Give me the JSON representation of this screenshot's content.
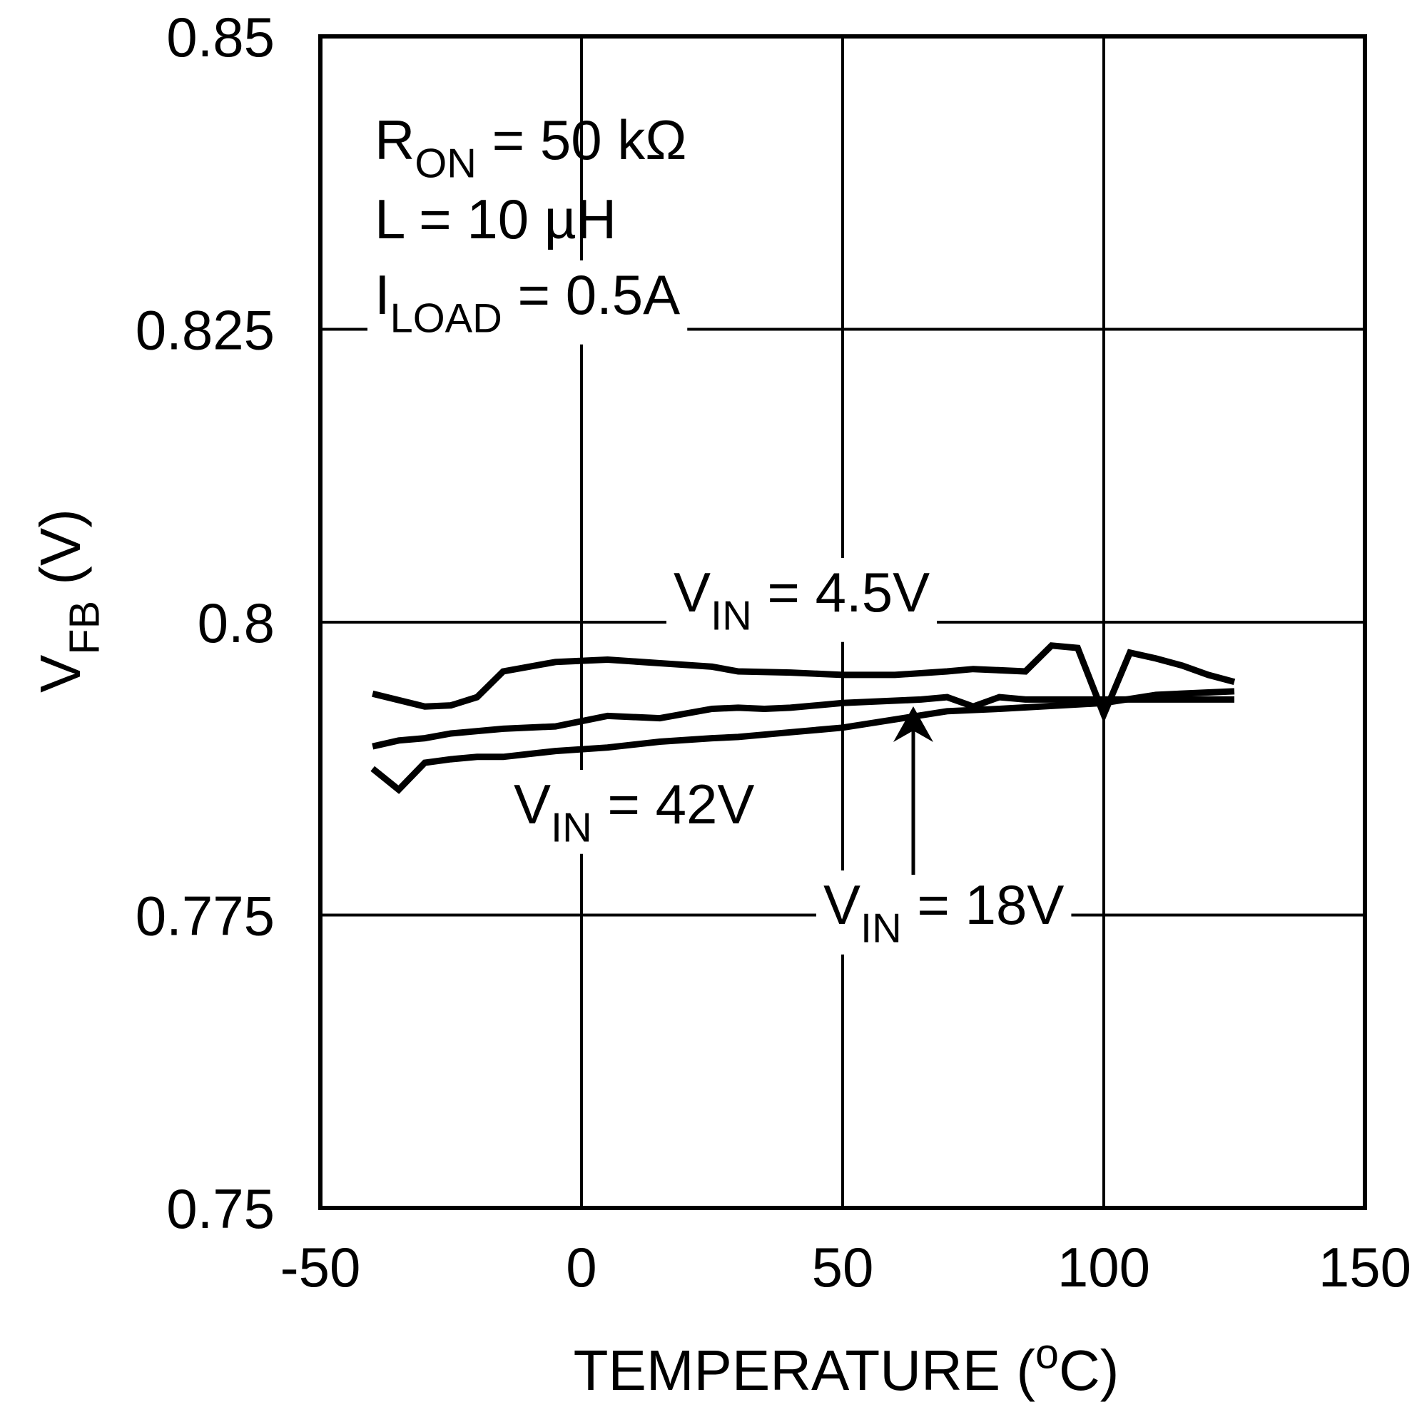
{
  "chart_data": {
    "type": "line",
    "xlabel": [
      {
        "text": "TEMPERATURE ("
      },
      {
        "text": "o",
        "sup": true
      },
      {
        "text": "C)"
      }
    ],
    "ylabel": [
      {
        "text": "V"
      },
      {
        "text": "FB",
        "sub": true
      },
      {
        "text": " (V)"
      }
    ],
    "notes": [
      [
        {
          "text": "R"
        },
        {
          "text": "ON",
          "sub": true
        },
        {
          "text": " = 50 kΩ"
        }
      ],
      [
        {
          "text": "L = 10 µH"
        }
      ],
      [
        {
          "text": "I"
        },
        {
          "text": "LOAD",
          "sub": true
        },
        {
          "text": " = 0.5A"
        }
      ]
    ],
    "xlim": [
      -50,
      150
    ],
    "xticks": [
      -50,
      0,
      50,
      100,
      150
    ],
    "ylim": [
      0.75,
      0.85
    ],
    "yticks": [
      0.75,
      0.775,
      0.8,
      0.825,
      0.85
    ],
    "grid": true,
    "series": [
      {
        "label": [
          {
            "text": "V"
          },
          {
            "text": "IN",
            "sub": true
          },
          {
            "text": " = 4.5V"
          }
        ],
        "color": "#000000",
        "x": [
          -40,
          -30,
          -25,
          -20,
          -15,
          -5,
          5,
          15,
          25,
          30,
          40,
          50,
          60,
          70,
          75,
          85,
          90,
          95,
          100,
          105,
          110,
          115,
          120,
          125
        ],
        "values": [
          0.7939,
          0.7928,
          0.7929,
          0.7936,
          0.7958,
          0.7966,
          0.7968,
          0.7965,
          0.7962,
          0.7958,
          0.7957,
          0.7955,
          0.7955,
          0.7958,
          0.796,
          0.7958,
          0.798,
          0.7978,
          0.7921,
          0.7974,
          0.7969,
          0.7963,
          0.7955,
          0.7949
        ]
      },
      {
        "label": [
          {
            "text": "V"
          },
          {
            "text": "IN",
            "sub": true
          },
          {
            "text": " = 42V"
          }
        ],
        "color": "#000000",
        "x": [
          -40,
          -35,
          -30,
          -25,
          -20,
          -15,
          -5,
          5,
          15,
          25,
          30,
          35,
          40,
          50,
          60,
          65,
          70,
          75,
          80,
          85,
          100,
          110,
          125
        ],
        "values": [
          0.7894,
          0.7899,
          0.7901,
          0.7905,
          0.7907,
          0.7909,
          0.7911,
          0.792,
          0.7918,
          0.7926,
          0.7927,
          0.7926,
          0.7927,
          0.7931,
          0.7933,
          0.7934,
          0.7936,
          0.7928,
          0.7936,
          0.7934,
          0.7934,
          0.7934,
          0.7934
        ]
      },
      {
        "label": [
          {
            "text": "V"
          },
          {
            "text": "IN",
            "sub": true
          },
          {
            "text": " = 18V"
          }
        ],
        "color": "#000000",
        "x": [
          -40,
          -35,
          -30,
          -25,
          -20,
          -15,
          -5,
          5,
          15,
          25,
          30,
          40,
          50,
          60,
          70,
          80,
          100,
          110,
          125
        ],
        "values": [
          0.7875,
          0.7857,
          0.788,
          0.7883,
          0.7885,
          0.7885,
          0.789,
          0.7893,
          0.7898,
          0.7901,
          0.7902,
          0.7906,
          0.791,
          0.7917,
          0.7924,
          0.7926,
          0.7931,
          0.7938,
          0.7941
        ]
      }
    ]
  }
}
